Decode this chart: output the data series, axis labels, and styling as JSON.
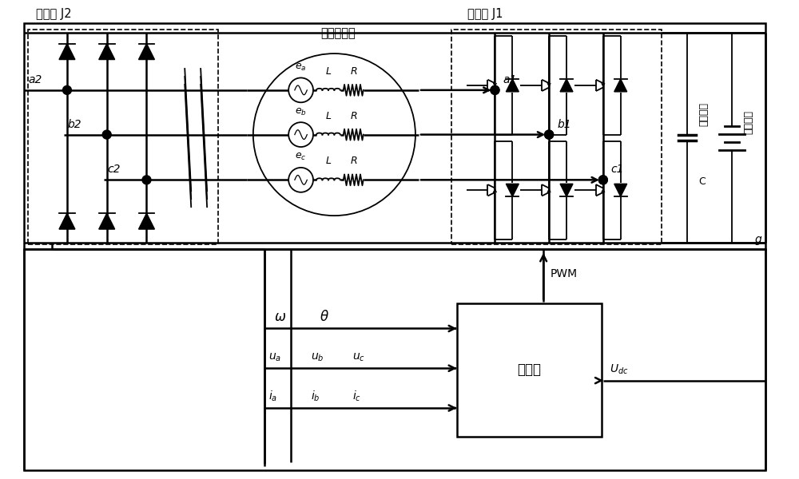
{
  "bg_color": "#ffffff",
  "label_J2": "变流器 J2",
  "label_J1": "变流器 J1",
  "label_motor": "开绕组电机",
  "label_controller": "控制器",
  "label_PWM": "PWM",
  "label_a2": "a2",
  "label_b2": "b2",
  "label_c2": "c2",
  "label_a1": "a1",
  "label_b1": "b1",
  "label_c1": "c1",
  "label_g": "g",
  "label_cap": "母线电容",
  "label_C": "C",
  "label_dc": "直流电源",
  "label_omega": "ω",
  "label_theta": "θ",
  "label_ua": "u_a",
  "label_ub": "u_b",
  "label_uc": "u_c",
  "label_ia": "i_a",
  "label_ib": "i_b",
  "label_ic": "i_c",
  "label_Udc": "U_{dc}",
  "figw": 10.0,
  "figh": 6.0,
  "dpi": 100
}
